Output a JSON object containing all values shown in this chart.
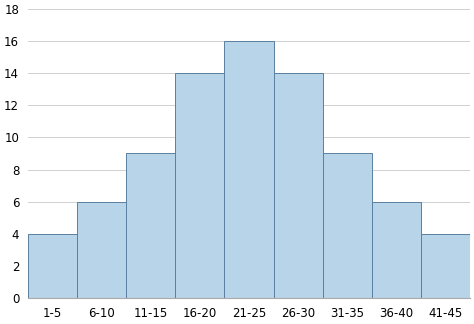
{
  "categories": [
    "1-5",
    "6-10",
    "11-15",
    "16-20",
    "21-25",
    "26-30",
    "31-35",
    "36-40",
    "41-45"
  ],
  "values": [
    4,
    6,
    9,
    14,
    16,
    14,
    9,
    6,
    4
  ],
  "bar_color": "#b8d4e8",
  "bar_edge_color": "#5a7fa0",
  "bar_edge_width": 0.7,
  "ylim": [
    0,
    18
  ],
  "yticks": [
    0,
    2,
    4,
    6,
    8,
    10,
    12,
    14,
    16,
    18
  ],
  "grid_color": "#d0d0d0",
  "grid_linewidth": 0.7,
  "background_color": "#ffffff",
  "tick_labelsize": 8.5,
  "bar_width": 1.0
}
